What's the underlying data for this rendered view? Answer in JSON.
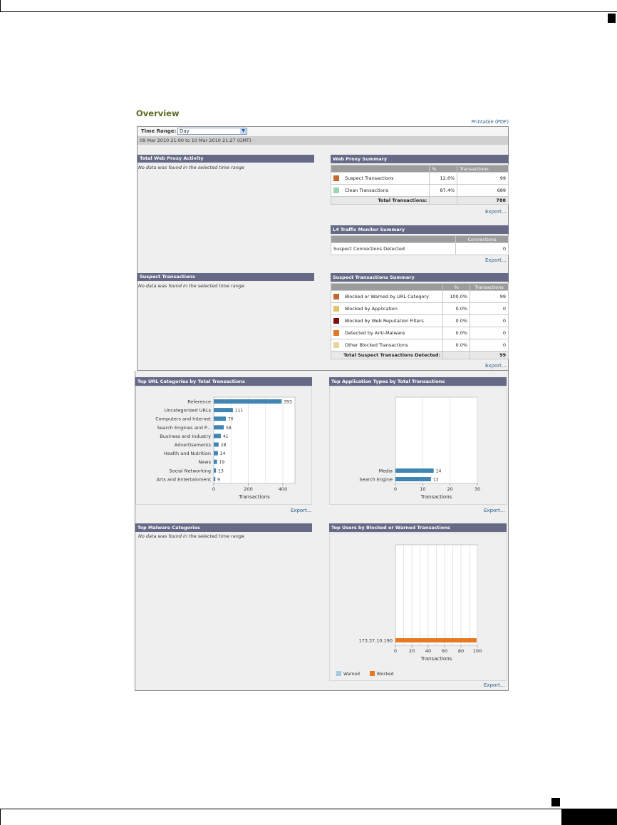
{
  "page": {
    "title": "Overview",
    "printable_label": "Printable (PDF)",
    "time_range_label": "Time Range:",
    "time_range_value": "Day",
    "date_range": "09 Mar 2010 21:00 to 10 Mar 2010 21:27 (GMT)",
    "export_label": "Export...",
    "no_data": "No data was found in the selected time range"
  },
  "panels": {
    "total_web_proxy_activity": "Total Web Proxy Activity",
    "web_proxy_summary": "Web Proxy Summary",
    "l4_traffic": "L4 Traffic Monitor Summary",
    "suspect_transactions": "Suspect Transactions",
    "suspect_summary": "Suspect Transactions Summary",
    "top_url_categories": "Top URL Categories by Total Transactions",
    "top_app_types": "Top Application Types by Total Transactions",
    "top_malware": "Top Malware Categories",
    "top_users": "Top Users by Blocked or Warned Transactions"
  },
  "web_proxy_summary": {
    "col_pct": "%",
    "col_tx": "Transactions",
    "rows": [
      {
        "label": "Suspect Transactions",
        "pct": "12.6%",
        "count": "99",
        "color": "#c8692a"
      },
      {
        "label": "Clean Transactions",
        "pct": "87.4%",
        "count": "689",
        "color": "#9fd4b0"
      }
    ],
    "total_label": "Total Transactions:",
    "total_value": "788"
  },
  "l4_summary": {
    "col_connections": "Connections",
    "row_label": "Suspect Connections Detected",
    "row_value": "0"
  },
  "suspect_summary": {
    "col_pct": "%",
    "col_tx": "Transactions",
    "rows": [
      {
        "label": "Blocked or Warned by URL Category",
        "pct": "100.0%",
        "count": "99",
        "color": "#c0692e"
      },
      {
        "label": "Blocked by Application",
        "pct": "0.0%",
        "count": "0",
        "color": "#e2c46a"
      },
      {
        "label": "Blocked by Web Reputation Filters",
        "pct": "0.0%",
        "count": "0",
        "color": "#7d1010"
      },
      {
        "label": "Detected by Anti-Malware",
        "pct": "0.0%",
        "count": "0",
        "color": "#e0782a"
      },
      {
        "label": "Other Blocked Transactions",
        "pct": "0.0%",
        "count": "0",
        "color": "#ead49a"
      }
    ],
    "total_label": "Total Suspect Transactions Detected:",
    "total_value": "99"
  },
  "chart_data": [
    {
      "type": "bar",
      "orientation": "horizontal",
      "title": "Top URL Categories by Total Transactions",
      "xlabel": "Transactions",
      "xlim": [
        0,
        470
      ],
      "xticks": [
        0,
        200,
        400
      ],
      "color": "#3f86b5",
      "categories": [
        "Reference",
        "Uncategorized URLs",
        "Computers and Internet",
        "Search Engines and P...",
        "Business and Industry",
        "Advertisements",
        "Health and Nutrition",
        "News",
        "Social Networking",
        "Arts and Entertainment"
      ],
      "values": [
        393,
        111,
        70,
        58,
        41,
        28,
        24,
        19,
        13,
        9
      ]
    },
    {
      "type": "bar",
      "orientation": "horizontal",
      "title": "Top Application Types by Total Transactions",
      "xlabel": "Transactions",
      "xlim": [
        0,
        30
      ],
      "xticks": [
        0,
        10,
        20,
        30
      ],
      "color": "#3f86b5",
      "categories": [
        "Media",
        "Search Engine"
      ],
      "values": [
        14,
        13
      ]
    },
    {
      "type": "bar",
      "orientation": "horizontal",
      "title": "Top Users by Blocked or Warned Transactions",
      "xlabel": "Transactions",
      "xlim": [
        0,
        100
      ],
      "xticks": [
        0,
        20,
        40,
        60,
        80,
        100
      ],
      "categories": [
        "173.37.10.190"
      ],
      "series": [
        {
          "name": "Warned",
          "color": "#9ecbe0",
          "values": [
            0
          ]
        },
        {
          "name": "Blocked",
          "color": "#e8781e",
          "values": [
            99
          ]
        }
      ],
      "legend": "bottom-left"
    }
  ]
}
